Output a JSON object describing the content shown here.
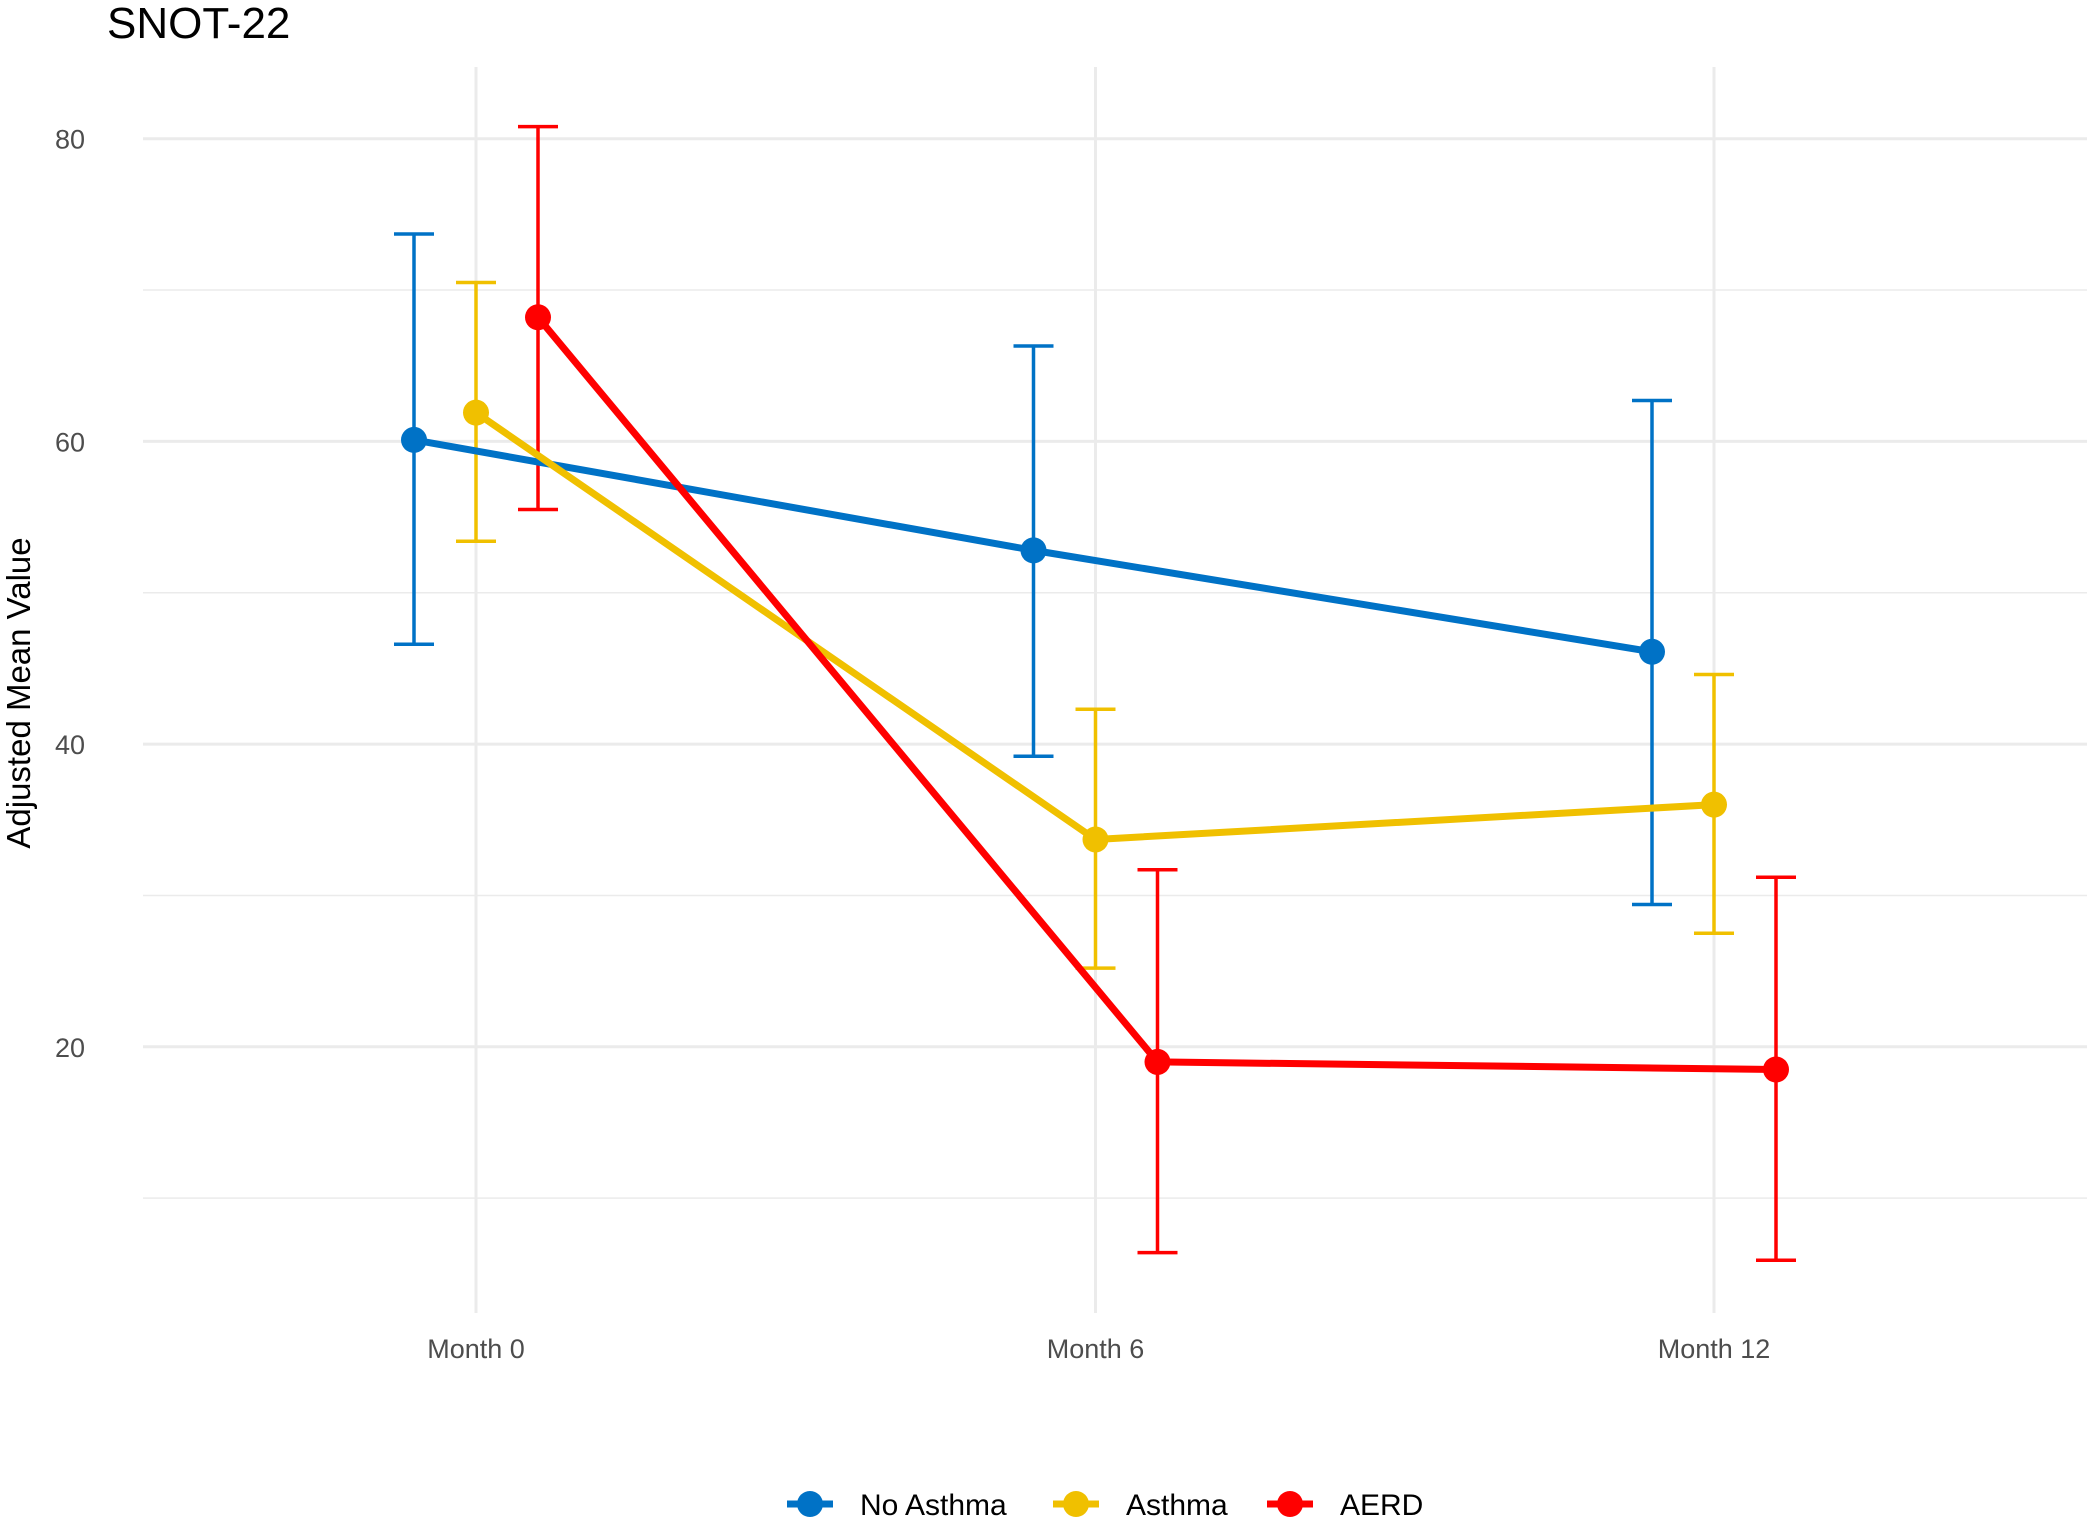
{
  "chart_data": {
    "type": "line",
    "title": "SNOT-22",
    "xlabel": "",
    "ylabel": "Adjusted Mean Value",
    "categories": [
      "Month 0",
      "Month 6",
      "Month 12"
    ],
    "ylim": [
      0,
      84
    ],
    "yticks": [
      20,
      40,
      60,
      80
    ],
    "grid": true,
    "legend_position": "bottom",
    "series": [
      {
        "name": "No Asthma",
        "color": "#0072C6",
        "values": [
          60.1,
          52.8,
          46.1
        ],
        "lower": [
          46.6,
          39.2,
          29.4
        ],
        "upper": [
          73.7,
          66.3,
          62.7
        ]
      },
      {
        "name": "Asthma",
        "color": "#F0C000",
        "values": [
          61.9,
          33.7,
          36.0
        ],
        "lower": [
          53.4,
          25.2,
          27.5
        ],
        "upper": [
          70.5,
          42.3,
          44.6
        ]
      },
      {
        "name": "AERD",
        "color": "#FF0000",
        "values": [
          68.2,
          19.0,
          18.5
        ],
        "lower": [
          55.5,
          6.4,
          5.9
        ],
        "upper": [
          80.8,
          31.7,
          31.2
        ]
      }
    ]
  }
}
